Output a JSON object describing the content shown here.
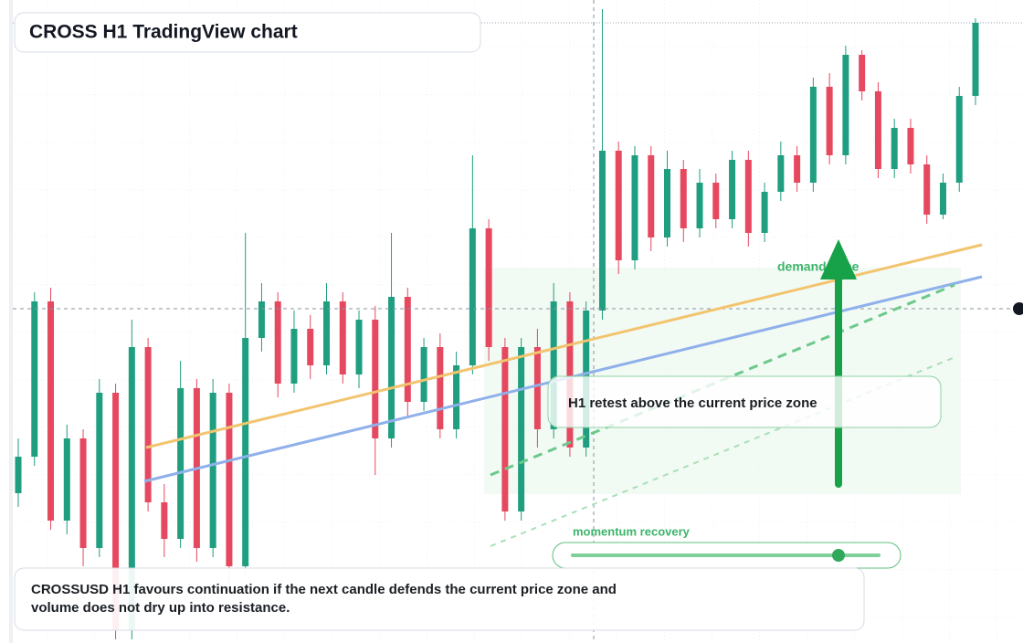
{
  "chart_data": {
    "type": "candlestick",
    "title": "CROSS H1 TradingView chart",
    "annotations": {
      "zone": "demand zone",
      "retest": "H1 retest above the current price zone",
      "momentum": "momentum recovery",
      "note": "CROSSUSD H1 favours continuation if the next candle defends the current price zone and volume does not dry up into resistance."
    },
    "up_color": "#1f9e80",
    "down_color": "#e5485f",
    "ylim": [
      0,
      704
    ],
    "open": [
      164,
      204,
      374,
      134,
      224,
      104,
      274,
      14,
      324,
      154,
      114,
      279,
      104,
      274,
      84,
      334,
      374,
      284,
      344,
      304,
      374,
      294,
      354,
      224,
      379,
      264,
      324,
      234,
      304,
      454,
      324,
      144,
      324,
      234,
      374,
      214,
      364,
      539,
      419,
      534,
      444,
      519,
      454,
      504,
      464,
      529,
      449,
      494,
      534,
      504,
      609,
      534,
      644,
      604,
      519,
      564,
      524,
      469,
      504,
      599
    ],
    "high": [
      224,
      384,
      389,
      239,
      234,
      289,
      284,
      354,
      334,
      174,
      309,
      289,
      289,
      284,
      449,
      394,
      384,
      364,
      359,
      394,
      384,
      364,
      369,
      449,
      389,
      334,
      339,
      319,
      534,
      464,
      334,
      334,
      344,
      394,
      384,
      374,
      694,
      549,
      544,
      544,
      539,
      529,
      519,
      514,
      539,
      539,
      504,
      549,
      544,
      619,
      624,
      654,
      649,
      614,
      574,
      574,
      534,
      514,
      609,
      684
    ],
    "low": [
      149,
      194,
      124,
      119,
      84,
      94,
      4,
      4,
      144,
      94,
      104,
      89,
      94,
      64,
      74,
      319,
      269,
      274,
      289,
      294,
      284,
      279,
      184,
      214,
      249,
      254,
      224,
      224,
      294,
      309,
      134,
      134,
      214,
      224,
      204,
      204,
      354,
      404,
      409,
      429,
      434,
      439,
      444,
      454,
      454,
      434,
      439,
      484,
      494,
      494,
      524,
      524,
      594,
      509,
      509,
      514,
      459,
      464,
      494,
      589
    ],
    "close": [
      204,
      374,
      134,
      224,
      104,
      274,
      14,
      324,
      154,
      114,
      279,
      104,
      274,
      84,
      334,
      374,
      284,
      344,
      304,
      374,
      294,
      354,
      224,
      379,
      264,
      324,
      234,
      304,
      454,
      324,
      144,
      324,
      234,
      374,
      214,
      364,
      539,
      419,
      534,
      444,
      519,
      454,
      504,
      464,
      529,
      449,
      494,
      534,
      504,
      609,
      534,
      644,
      604,
      519,
      564,
      524,
      469,
      504,
      599,
      679
    ]
  }
}
